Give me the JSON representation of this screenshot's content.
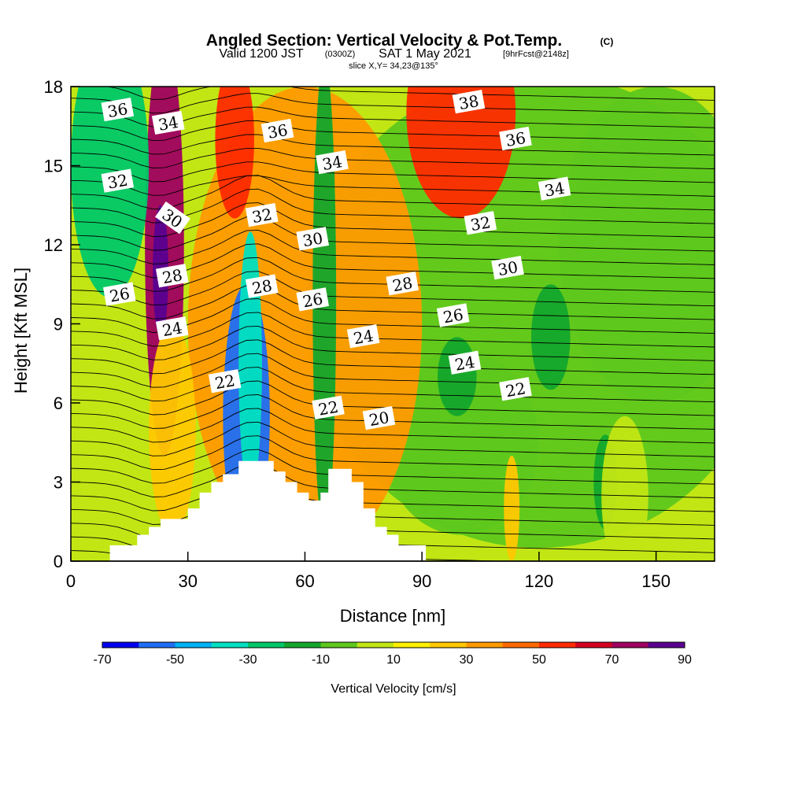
{
  "title": {
    "main": "Angled Section: Vertical Velocity & Pot.Temp.",
    "mark": "(C)",
    "valid_a": "Valid 1200 JST",
    "valid_b": "(0300Z)",
    "valid_c": "SAT 1 May 2021",
    "valid_d": "[9hrFcst@2148z]",
    "slice": "slice X,Y= 34,23@135°"
  },
  "chart_data": {
    "type": "heatmap",
    "xlabel": "Distance [nm]",
    "ylabel": "Height [Kft MSL]",
    "xlim": [
      0,
      165
    ],
    "ylim": [
      0,
      18
    ],
    "x_ticks": [
      "0",
      "30",
      "60",
      "90",
      "120",
      "150"
    ],
    "y_ticks": [
      "0",
      "3",
      "6",
      "9",
      "12",
      "15",
      "18"
    ],
    "colorbar": {
      "label": "Vertical Velocity [cm/s]",
      "range": [
        -70,
        90
      ],
      "ticks": [
        "-70",
        "-50",
        "-30",
        "-10",
        "10",
        "30",
        "50",
        "70",
        "90"
      ],
      "colors": [
        "#0000f0",
        "#1f6ef5",
        "#00b2f5",
        "#00e0c0",
        "#00c868",
        "#13a62c",
        "#5ec81c",
        "#c2e614",
        "#ffef00",
        "#ffc800",
        "#ff9a00",
        "#ff6a00",
        "#ff2a00",
        "#d50020",
        "#a00060",
        "#5a0090"
      ]
    },
    "terrain": [
      [
        0,
        0
      ],
      [
        10,
        0
      ],
      [
        10,
        0.6
      ],
      [
        17,
        0.6
      ],
      [
        17,
        1.0
      ],
      [
        20,
        1.0
      ],
      [
        20,
        1.3
      ],
      [
        23,
        1.3
      ],
      [
        23,
        1.6
      ],
      [
        30,
        1.6
      ],
      [
        30,
        2.0
      ],
      [
        33,
        2.0
      ],
      [
        33,
        2.6
      ],
      [
        36,
        2.6
      ],
      [
        36,
        3.0
      ],
      [
        39,
        3.0
      ],
      [
        39,
        3.3
      ],
      [
        43,
        3.3
      ],
      [
        43,
        3.8
      ],
      [
        52,
        3.8
      ],
      [
        52,
        3.4
      ],
      [
        55,
        3.4
      ],
      [
        55,
        3.0
      ],
      [
        58,
        3.0
      ],
      [
        58,
        2.6
      ],
      [
        61,
        2.6
      ],
      [
        61,
        2.3
      ],
      [
        64,
        2.3
      ],
      [
        64,
        2.6
      ],
      [
        66,
        2.6
      ],
      [
        66,
        3.5
      ],
      [
        72,
        3.5
      ],
      [
        72,
        3.0
      ],
      [
        75,
        3.0
      ],
      [
        75,
        2.0
      ],
      [
        78,
        2.0
      ],
      [
        78,
        1.3
      ],
      [
        81,
        1.3
      ],
      [
        81,
        1.0
      ],
      [
        84,
        1.0
      ],
      [
        84,
        0.6
      ],
      [
        91,
        0.6
      ],
      [
        91,
        0
      ]
    ],
    "velocity_blobs": [
      {
        "x": 120,
        "z": 9.5,
        "rx": 60,
        "rz": 9,
        "v": -10
      },
      {
        "x": 150,
        "z": 12,
        "rx": 25,
        "rz": 6,
        "v": -5
      },
      {
        "x": 100,
        "z": 4.5,
        "rx": 20,
        "rz": 3.5,
        "v": -10
      },
      {
        "x": 60,
        "z": 9,
        "rx": 30,
        "rz": 9,
        "v": 30
      },
      {
        "x": 24,
        "z": 12,
        "rx": 5,
        "rz": 8,
        "v": 70
      },
      {
        "x": 23,
        "z": 11,
        "rx": 2,
        "rz": 2.5,
        "v": 90
      },
      {
        "x": 26,
        "z": 5,
        "rx": 6,
        "rz": 4,
        "v": 25
      },
      {
        "x": 42,
        "z": 16,
        "rx": 5,
        "rz": 3,
        "v": 55
      },
      {
        "x": 100,
        "z": 17,
        "rx": 14,
        "rz": 4,
        "v": 55
      },
      {
        "x": 45,
        "z": 5.5,
        "rx": 6,
        "rz": 5,
        "v": -55
      },
      {
        "x": 46,
        "z": 7.5,
        "rx": 3,
        "rz": 5,
        "v": -40
      },
      {
        "x": 65,
        "z": 10,
        "rx": 3,
        "rz": 9,
        "v": -20
      },
      {
        "x": 10,
        "z": 15,
        "rx": 10,
        "rz": 5,
        "v": -30
      },
      {
        "x": 123,
        "z": 8.5,
        "rx": 5,
        "rz": 2,
        "v": -20
      },
      {
        "x": 99,
        "z": 7,
        "rx": 5,
        "rz": 1.5,
        "v": -20
      },
      {
        "x": 137,
        "z": 3,
        "rx": 3,
        "rz": 1.8,
        "v": -20
      },
      {
        "x": 113,
        "z": 2,
        "rx": 2,
        "rz": 2,
        "v": 25
      },
      {
        "x": 142,
        "z": 2.5,
        "rx": 6,
        "rz": 3,
        "v": 8
      }
    ],
    "theta_labels": [
      {
        "text": "36",
        "x": 12,
        "z": 17.1
      },
      {
        "text": "34",
        "x": 25,
        "z": 16.6
      },
      {
        "text": "32",
        "x": 12,
        "z": 14.4
      },
      {
        "text": "30",
        "x": 26,
        "z": 13.0
      },
      {
        "text": "28",
        "x": 26,
        "z": 10.8
      },
      {
        "text": "26",
        "x": 12.5,
        "z": 10.1
      },
      {
        "text": "24",
        "x": 26,
        "z": 8.8
      },
      {
        "text": "36",
        "x": 53,
        "z": 16.3
      },
      {
        "text": "34",
        "x": 67,
        "z": 15.1
      },
      {
        "text": "32",
        "x": 49,
        "z": 13.1
      },
      {
        "text": "30",
        "x": 62,
        "z": 12.2
      },
      {
        "text": "28",
        "x": 49,
        "z": 10.4
      },
      {
        "text": "26",
        "x": 62,
        "z": 9.9
      },
      {
        "text": "22",
        "x": 39.5,
        "z": 6.8
      },
      {
        "text": "22",
        "x": 66,
        "z": 5.8
      },
      {
        "text": "24",
        "x": 75,
        "z": 8.5
      },
      {
        "text": "20",
        "x": 79,
        "z": 5.4
      },
      {
        "text": "28",
        "x": 85,
        "z": 10.5
      },
      {
        "text": "38",
        "x": 102,
        "z": 17.4
      },
      {
        "text": "36",
        "x": 114,
        "z": 16.0
      },
      {
        "text": "34",
        "x": 124,
        "z": 14.1
      },
      {
        "text": "32",
        "x": 105,
        "z": 12.8
      },
      {
        "text": "30",
        "x": 112,
        "z": 11.1
      },
      {
        "text": "26",
        "x": 98,
        "z": 9.3
      },
      {
        "text": "24",
        "x": 101,
        "z": 7.5
      },
      {
        "text": "22",
        "x": 114,
        "z": 6.5
      }
    ]
  }
}
